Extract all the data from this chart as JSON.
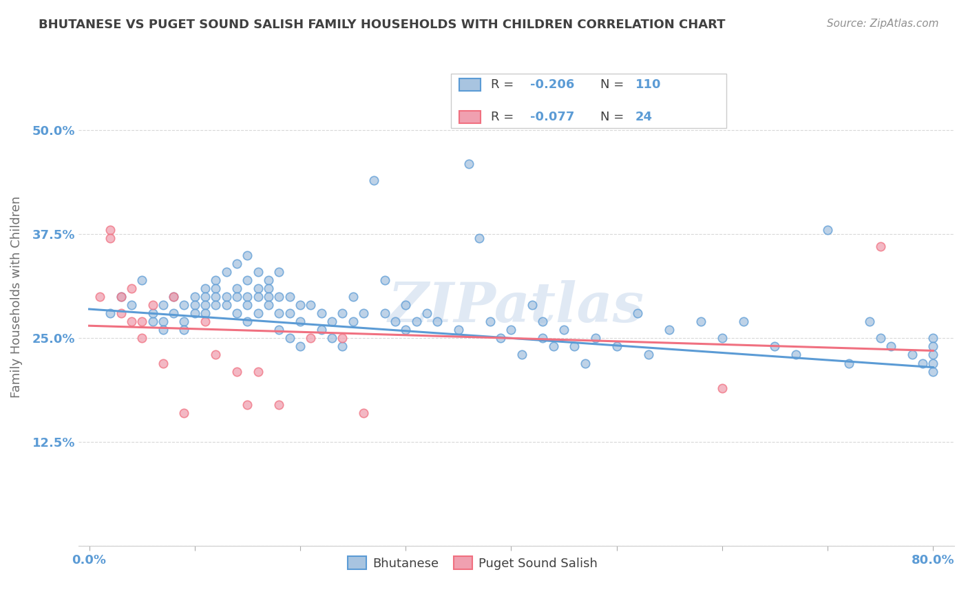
{
  "title": "BHUTANESE VS PUGET SOUND SALISH FAMILY HOUSEHOLDS WITH CHILDREN CORRELATION CHART",
  "source": "Source: ZipAtlas.com",
  "ylabel": "Family Households with Children",
  "blue_R": "-0.206",
  "blue_N": "110",
  "pink_R": "-0.077",
  "pink_N": "24",
  "blue_color": "#a8c4e0",
  "pink_color": "#f0a0b0",
  "blue_line_color": "#5b9bd5",
  "pink_line_color": "#f07080",
  "title_color": "#404040",
  "axis_label_color": "#5b9bd5",
  "legend_value_color": "#5b9bd5",
  "watermark": "ZIPatlas",
  "blue_scatter_x": [
    0.02,
    0.03,
    0.04,
    0.05,
    0.06,
    0.06,
    0.07,
    0.07,
    0.07,
    0.08,
    0.08,
    0.09,
    0.09,
    0.09,
    0.1,
    0.1,
    0.1,
    0.11,
    0.11,
    0.11,
    0.11,
    0.12,
    0.12,
    0.12,
    0.12,
    0.13,
    0.13,
    0.13,
    0.14,
    0.14,
    0.14,
    0.14,
    0.15,
    0.15,
    0.15,
    0.15,
    0.15,
    0.16,
    0.16,
    0.16,
    0.16,
    0.17,
    0.17,
    0.17,
    0.17,
    0.18,
    0.18,
    0.18,
    0.18,
    0.19,
    0.19,
    0.19,
    0.2,
    0.2,
    0.2,
    0.21,
    0.22,
    0.22,
    0.23,
    0.23,
    0.24,
    0.24,
    0.25,
    0.25,
    0.26,
    0.27,
    0.28,
    0.28,
    0.29,
    0.3,
    0.3,
    0.31,
    0.32,
    0.33,
    0.35,
    0.36,
    0.37,
    0.38,
    0.39,
    0.4,
    0.41,
    0.42,
    0.43,
    0.43,
    0.44,
    0.45,
    0.46,
    0.47,
    0.48,
    0.5,
    0.52,
    0.53,
    0.55,
    0.58,
    0.6,
    0.62,
    0.65,
    0.67,
    0.7,
    0.72,
    0.74,
    0.75,
    0.76,
    0.78,
    0.79,
    0.8,
    0.8,
    0.8,
    0.8,
    0.8
  ],
  "blue_scatter_y": [
    0.28,
    0.3,
    0.29,
    0.32,
    0.27,
    0.28,
    0.29,
    0.27,
    0.26,
    0.3,
    0.28,
    0.29,
    0.27,
    0.26,
    0.3,
    0.29,
    0.28,
    0.31,
    0.3,
    0.29,
    0.28,
    0.32,
    0.31,
    0.3,
    0.29,
    0.33,
    0.3,
    0.29,
    0.34,
    0.31,
    0.3,
    0.28,
    0.35,
    0.32,
    0.3,
    0.29,
    0.27,
    0.33,
    0.31,
    0.3,
    0.28,
    0.32,
    0.31,
    0.3,
    0.29,
    0.33,
    0.3,
    0.28,
    0.26,
    0.3,
    0.28,
    0.25,
    0.29,
    0.27,
    0.24,
    0.29,
    0.28,
    0.26,
    0.27,
    0.25,
    0.28,
    0.24,
    0.3,
    0.27,
    0.28,
    0.44,
    0.32,
    0.28,
    0.27,
    0.29,
    0.26,
    0.27,
    0.28,
    0.27,
    0.26,
    0.46,
    0.37,
    0.27,
    0.25,
    0.26,
    0.23,
    0.29,
    0.27,
    0.25,
    0.24,
    0.26,
    0.24,
    0.22,
    0.25,
    0.24,
    0.28,
    0.23,
    0.26,
    0.27,
    0.25,
    0.27,
    0.24,
    0.23,
    0.38,
    0.22,
    0.27,
    0.25,
    0.24,
    0.23,
    0.22,
    0.25,
    0.24,
    0.23,
    0.22,
    0.21
  ],
  "pink_scatter_x": [
    0.01,
    0.02,
    0.02,
    0.03,
    0.03,
    0.04,
    0.04,
    0.05,
    0.05,
    0.06,
    0.07,
    0.08,
    0.09,
    0.11,
    0.12,
    0.14,
    0.15,
    0.16,
    0.18,
    0.21,
    0.24,
    0.26,
    0.6,
    0.75
  ],
  "pink_scatter_y": [
    0.3,
    0.38,
    0.37,
    0.3,
    0.28,
    0.27,
    0.31,
    0.27,
    0.25,
    0.29,
    0.22,
    0.3,
    0.16,
    0.27,
    0.23,
    0.21,
    0.17,
    0.21,
    0.17,
    0.25,
    0.25,
    0.16,
    0.19,
    0.36
  ],
  "blue_line_x": [
    0.0,
    0.8
  ],
  "blue_line_y": [
    0.285,
    0.215
  ],
  "pink_line_x": [
    0.0,
    0.8
  ],
  "pink_line_y": [
    0.265,
    0.235
  ],
  "xlim": [
    -0.01,
    0.82
  ],
  "ylim": [
    0.0,
    0.6
  ],
  "yticks": [
    0.0,
    0.125,
    0.25,
    0.375,
    0.5
  ],
  "ytick_labels": [
    "",
    "12.5%",
    "25.0%",
    "37.5%",
    "50.0%"
  ],
  "xticks": [
    0.0,
    0.1,
    0.2,
    0.3,
    0.4,
    0.5,
    0.6,
    0.7,
    0.8
  ],
  "xtick_labels": [
    "0.0%",
    "",
    "",
    "",
    "",
    "",
    "",
    "",
    "80.0%"
  ],
  "background_color": "#ffffff",
  "grid_color": "#d8d8d8",
  "scatter_size": 80,
  "scatter_alpha": 0.75,
  "scatter_linewidth": 1.2
}
